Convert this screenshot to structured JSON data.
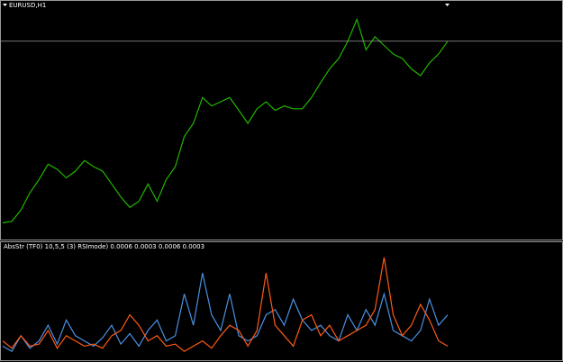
{
  "chart_data": [
    {
      "type": "line",
      "title": "EURUSD,H1",
      "ylim": [
        0,
        100
      ],
      "series": [
        {
          "color": "#22b500",
          "values": [
            5.8,
            6.5,
            11.5,
            19.2,
            25,
            31.9,
            29.6,
            25.8,
            28.8,
            33.5,
            30.8,
            28.8,
            23.1,
            17.3,
            12.7,
            15.4,
            23.1,
            15.4,
            25,
            30.8,
            44.2,
            50,
            61.5,
            57.7,
            59.6,
            61.5,
            55.8,
            50,
            56.5,
            59.6,
            55.8,
            57.7,
            56.5,
            56.5,
            61.5,
            68.1,
            74.2,
            78.8,
            86.5,
            96.2,
            82.7,
            88.5,
            84.6,
            80.8,
            78.8,
            74.2,
            71.2,
            76.9,
            80.8,
            86.5
          ]
        }
      ]
    },
    {
      "type": "line",
      "title": "AbsStr (TF0) 10,5,5 (3) RSImode) 0.0006 0.0003 0.0006 0.0003",
      "ylim": [
        0,
        100
      ],
      "series": [
        {
          "color": "#4a90e2",
          "values": [
            10,
            5,
            20,
            8,
            15,
            30,
            12,
            35,
            20,
            15,
            10,
            18,
            30,
            12,
            22,
            10,
            25,
            35,
            15,
            20,
            60,
            30,
            80,
            40,
            25,
            60,
            20,
            15,
            20,
            40,
            45,
            30,
            55,
            35,
            25,
            30,
            20,
            15,
            40,
            25,
            45,
            30,
            60,
            25,
            20,
            15,
            25,
            55,
            30,
            40
          ]
        },
        {
          "color": "#ff5a14",
          "values": [
            15,
            8,
            20,
            10,
            12,
            25,
            8,
            20,
            15,
            10,
            12,
            8,
            20,
            25,
            40,
            30,
            15,
            20,
            10,
            12,
            5,
            10,
            15,
            8,
            20,
            30,
            25,
            10,
            25,
            80,
            30,
            20,
            10,
            35,
            40,
            20,
            30,
            15,
            20,
            25,
            30,
            45,
            95,
            40,
            20,
            30,
            50,
            35,
            15,
            10
          ]
        }
      ]
    }
  ]
}
